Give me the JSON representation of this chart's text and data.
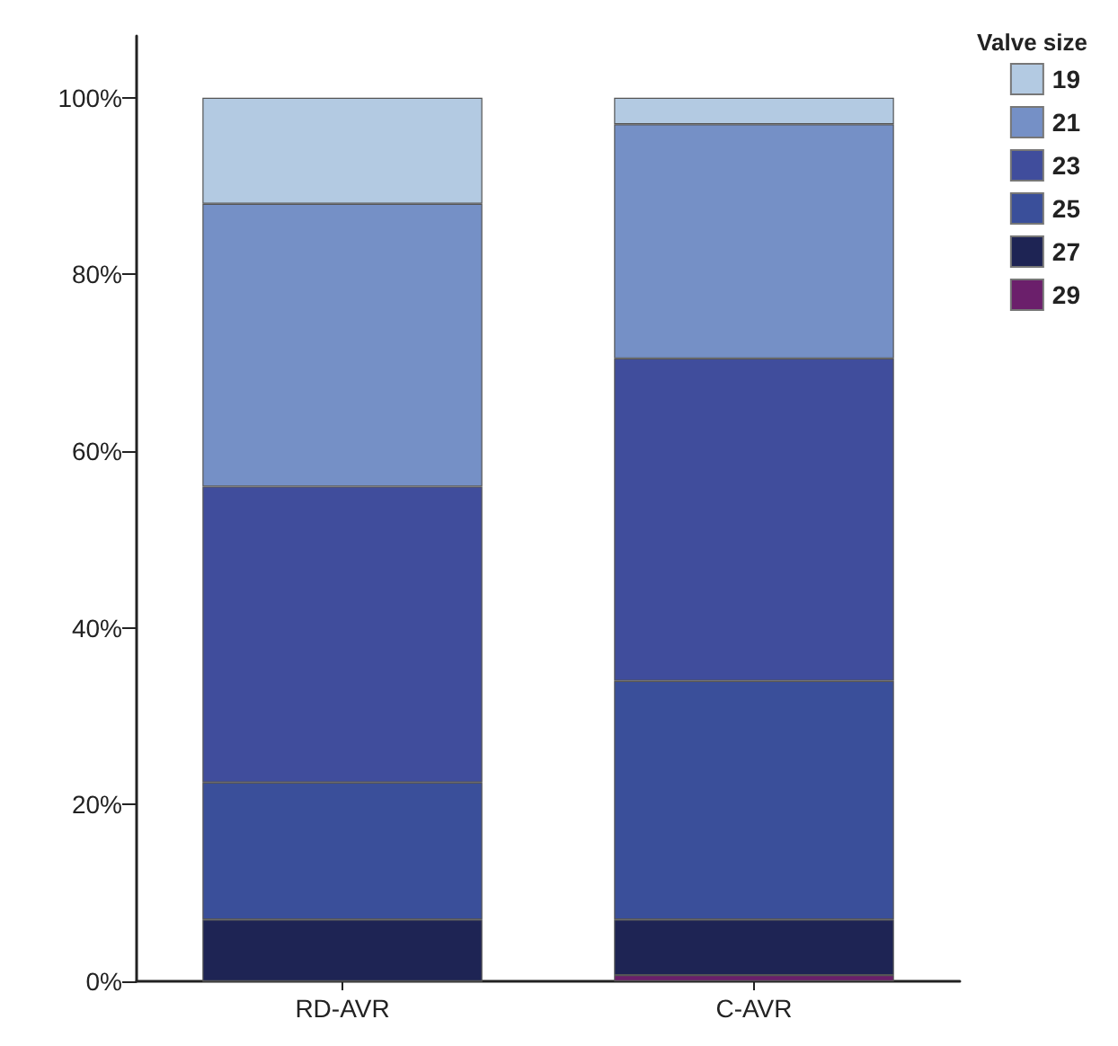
{
  "chart_data": {
    "type": "bar",
    "stacked": true,
    "categories": [
      "RD-AVR",
      "C-AVR"
    ],
    "legend_title": "Valve size",
    "legend": "top right",
    "grid": false,
    "ylim": [
      0,
      107
    ],
    "yticks": [
      {
        "value": 0,
        "label": "0%"
      },
      {
        "value": 20,
        "label": "20%"
      },
      {
        "value": 40,
        "label": "40%"
      },
      {
        "value": 60,
        "label": "60%"
      },
      {
        "value": 80,
        "label": "80%"
      },
      {
        "value": 100,
        "label": "100%"
      }
    ],
    "series": [
      {
        "name": "29",
        "color": "#6b1f6b",
        "values": [
          0,
          0.7
        ]
      },
      {
        "name": "27",
        "color": "#1e2454",
        "values": [
          7,
          6.3
        ]
      },
      {
        "name": "25",
        "color": "#3a4f9a",
        "values": [
          15.5,
          27
        ]
      },
      {
        "name": "23",
        "color": "#404d9c",
        "values": [
          33.5,
          36.5
        ]
      },
      {
        "name": "21",
        "color": "#7590c6",
        "values": [
          32,
          26.5
        ]
      },
      {
        "name": "19",
        "color": "#b3cae2",
        "values": [
          12,
          3
        ]
      }
    ]
  }
}
